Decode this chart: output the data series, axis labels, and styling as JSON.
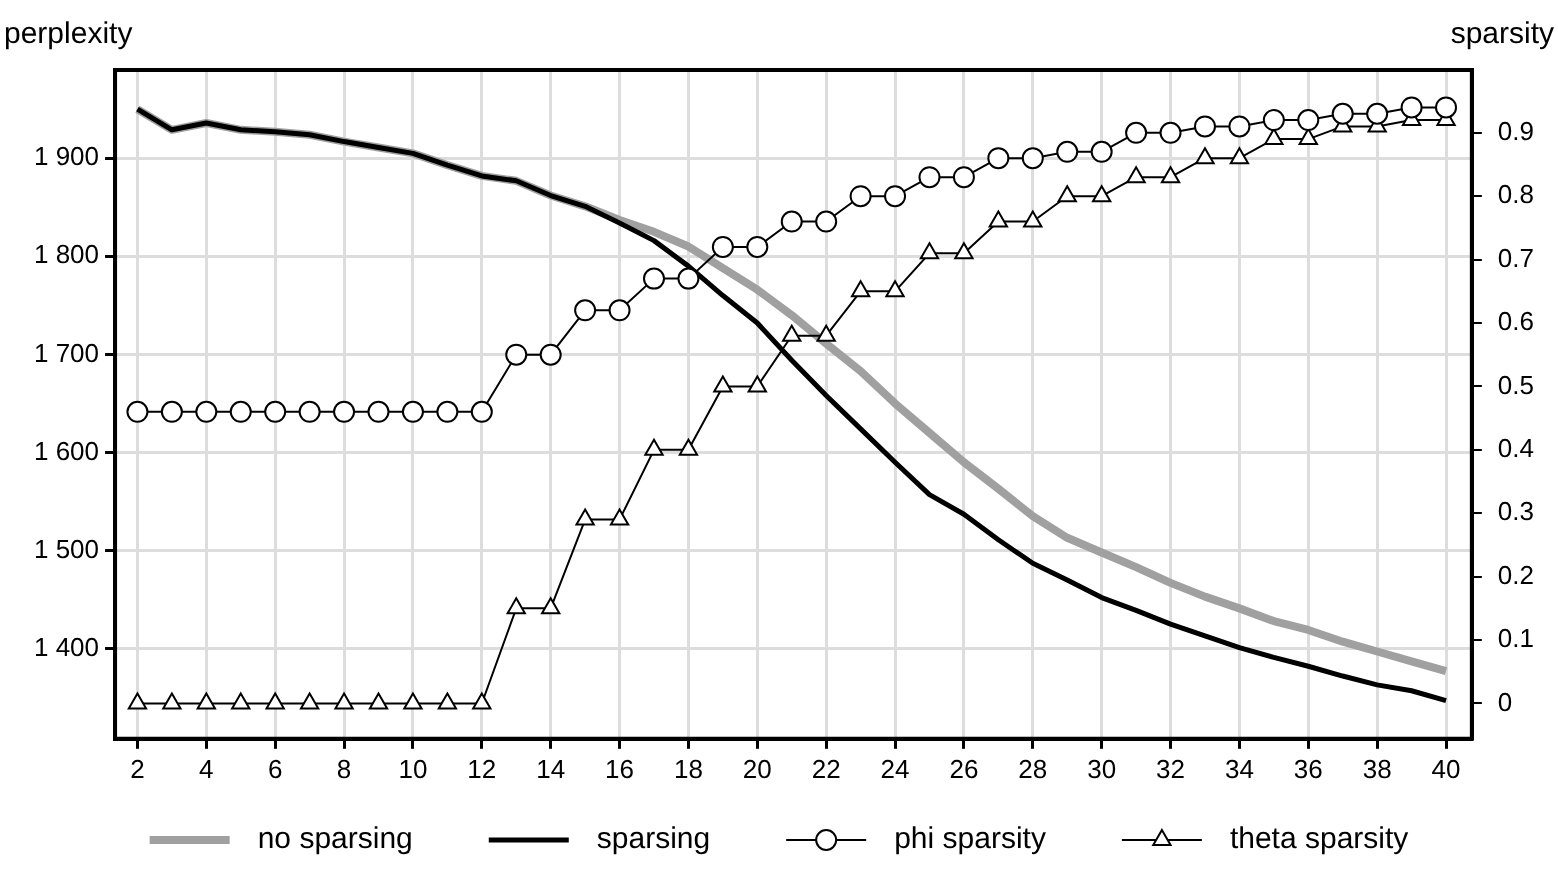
{
  "chart_data": {
    "type": "line",
    "ylabel": "perplexity",
    "y2label": "sparsity",
    "x": [
      2,
      3,
      4,
      5,
      6,
      7,
      8,
      9,
      10,
      11,
      12,
      13,
      14,
      15,
      16,
      17,
      18,
      19,
      20,
      21,
      22,
      23,
      24,
      25,
      26,
      27,
      28,
      29,
      30,
      31,
      32,
      33,
      34,
      35,
      36,
      37,
      38,
      39,
      40
    ],
    "series": [
      {
        "name": "no sparsing",
        "color": "#a0a0a0",
        "marker": "none",
        "values": [
          1950,
          1929,
          1936,
          1929,
          1927,
          1924,
          1917,
          1911,
          1905,
          1893,
          1882,
          1877,
          1862,
          1851,
          1837,
          1825,
          1810,
          1788,
          1766,
          1740,
          1711,
          1683,
          1650,
          1620,
          1590,
          1563,
          1535,
          1513,
          1498,
          1483,
          1467,
          1453,
          1441,
          1428,
          1419,
          1407,
          1397,
          1387,
          1377
        ]
      },
      {
        "name": "sparsing",
        "color": "#000000",
        "marker": "none",
        "values": [
          1950,
          1929,
          1936,
          1929,
          1927,
          1924,
          1917,
          1911,
          1905,
          1893,
          1882,
          1877,
          1862,
          1851,
          1834,
          1816,
          1790,
          1760,
          1732,
          1694,
          1658,
          1624,
          1590,
          1557,
          1537,
          1511,
          1487,
          1470,
          1452,
          1439,
          1425,
          1413,
          1401,
          1391,
          1382,
          1372,
          1363,
          1357,
          1347
        ]
      },
      {
        "name": "phi sparsity",
        "color": "#000000",
        "marker": "circle",
        "axis": "y2",
        "values": [
          0.46,
          0.46,
          0.46,
          0.46,
          0.46,
          0.46,
          0.46,
          0.46,
          0.46,
          0.46,
          0.46,
          0.55,
          0.55,
          0.62,
          0.62,
          0.67,
          0.67,
          0.72,
          0.72,
          0.76,
          0.76,
          0.8,
          0.8,
          0.83,
          0.83,
          0.86,
          0.86,
          0.87,
          0.87,
          0.9,
          0.9,
          0.91,
          0.91,
          0.92,
          0.92,
          0.93,
          0.93,
          0.94,
          0.94
        ]
      },
      {
        "name": "theta sparsity",
        "color": "#000000",
        "marker": "triangle",
        "axis": "y2",
        "values": [
          0,
          0,
          0,
          0,
          0,
          0,
          0,
          0,
          0,
          0,
          0,
          0.15,
          0.15,
          0.29,
          0.29,
          0.4,
          0.4,
          0.5,
          0.5,
          0.58,
          0.58,
          0.65,
          0.65,
          0.71,
          0.71,
          0.76,
          0.76,
          0.8,
          0.8,
          0.83,
          0.83,
          0.86,
          0.86,
          0.89,
          0.89,
          0.91,
          0.91,
          0.92,
          0.92
        ]
      }
    ],
    "xlim": [
      1.35,
      40.75
    ],
    "xticks": [
      2,
      4,
      6,
      8,
      10,
      12,
      14,
      16,
      18,
      20,
      22,
      24,
      26,
      28,
      30,
      32,
      34,
      36,
      38,
      40
    ],
    "ylim": [
      1308,
      1990
    ],
    "yticks": [
      {
        "value": 1400,
        "label": "1 400"
      },
      {
        "value": 1500,
        "label": "1 500"
      },
      {
        "value": 1600,
        "label": "1 600"
      },
      {
        "value": 1700,
        "label": "1 700"
      },
      {
        "value": 1800,
        "label": "1 800"
      },
      {
        "value": 1900,
        "label": "1 900"
      }
    ],
    "y2lim": [
      -0.0557,
      0.999
    ],
    "y2ticks": [
      0,
      0.1,
      0.2,
      0.3,
      0.4,
      0.5,
      0.6,
      0.7,
      0.8,
      0.9
    ],
    "grid": true,
    "legend": "bottom",
    "line_style": "solid"
  }
}
